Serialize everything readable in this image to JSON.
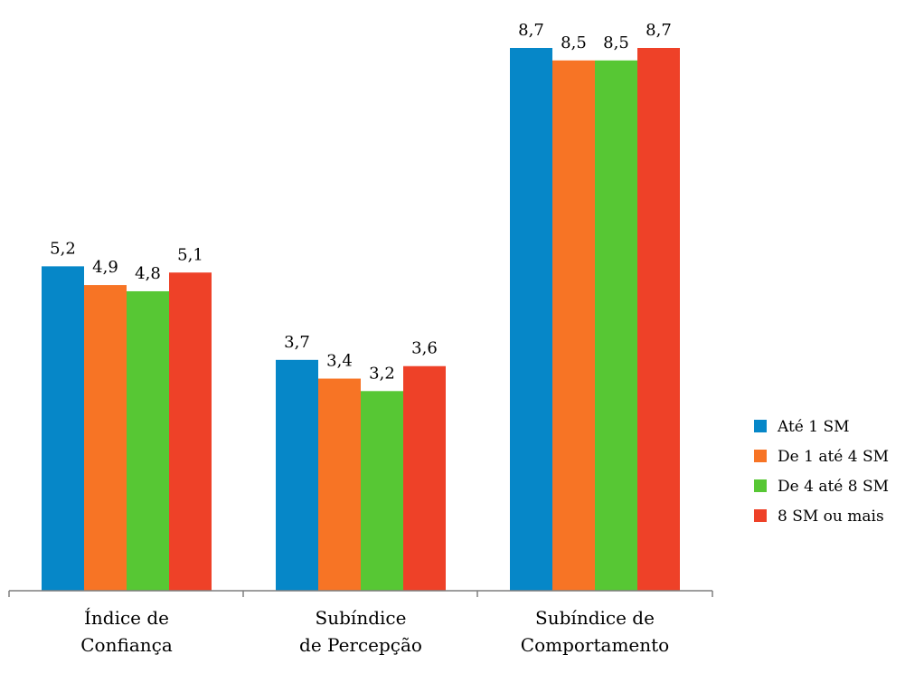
{
  "chart_data": {
    "type": "bar",
    "categories": [
      [
        "Índice de",
        "Confiança"
      ],
      [
        "Subíndice",
        "de Percepção"
      ],
      [
        "Subíndice de",
        "Comportamento"
      ]
    ],
    "series": [
      {
        "name": "Até 1 SM",
        "color": "#0687C8",
        "values": [
          5.2,
          3.7,
          8.7
        ]
      },
      {
        "name": "De 1 até 4 SM",
        "color": "#F77425",
        "values": [
          4.9,
          3.4,
          8.5
        ]
      },
      {
        "name": "De 4 até 8 SM",
        "color": "#57C734",
        "values": [
          4.8,
          3.2,
          8.5
        ]
      },
      {
        "name": "8 SM ou mais",
        "color": "#EE4128",
        "values": [
          5.1,
          3.6,
          8.7
        ]
      }
    ],
    "value_labels": [
      [
        "5,2",
        "3,7",
        "8,7"
      ],
      [
        "4,9",
        "3,4",
        "8,5"
      ],
      [
        "4,8",
        "3,2",
        "8,5"
      ],
      [
        "5,1",
        "3,6",
        "8,7"
      ]
    ],
    "title": "",
    "xlabel": "",
    "ylabel": "",
    "ylim": [
      0,
      10
    ],
    "grid": false,
    "legend": "right"
  }
}
